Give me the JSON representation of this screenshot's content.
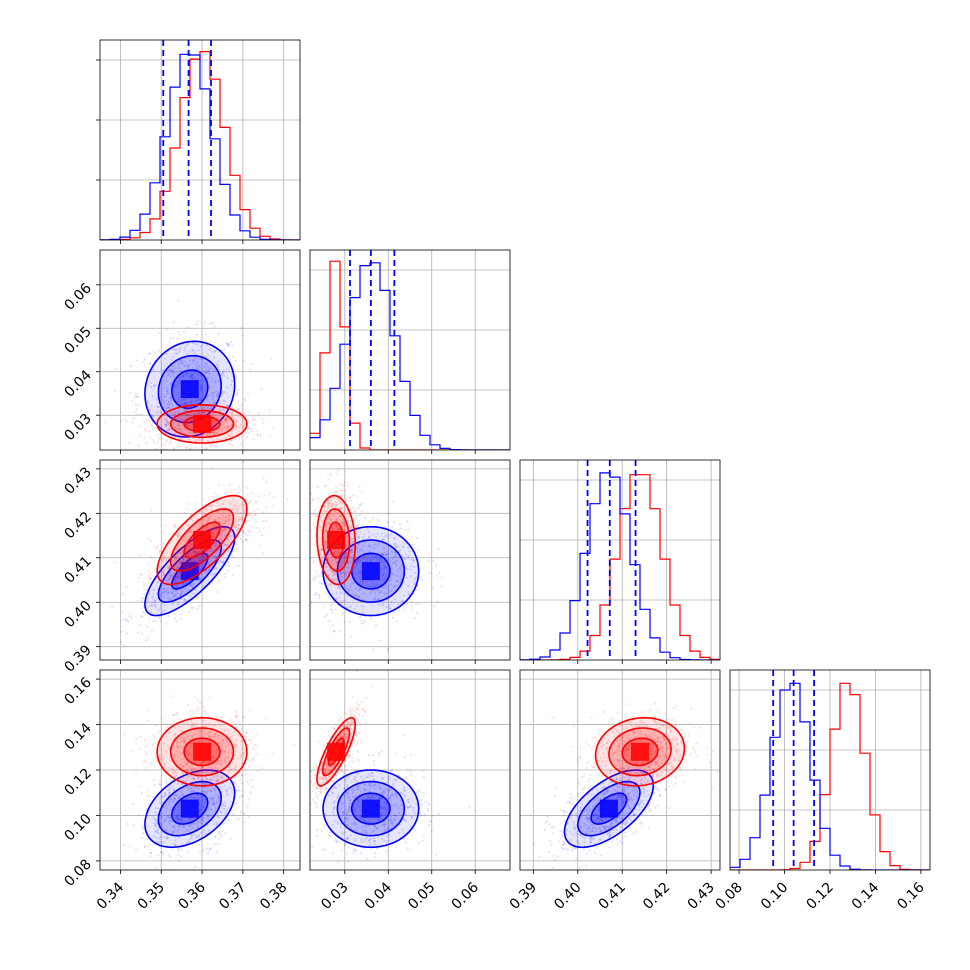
{
  "colors": {
    "red": "#ff0000",
    "blue": "#0000ff",
    "grid": "#b0b0b0",
    "axes": "#000000"
  },
  "chart_data": {
    "type": "corner",
    "title": "",
    "grid": true,
    "parameters": [
      {
        "range": [
          0.335,
          0.384
        ],
        "ticks": [
          "0.34",
          "0.35",
          "0.36",
          "0.37",
          "0.38"
        ],
        "tick_values": [
          0.34,
          0.35,
          0.36,
          0.37,
          0.38
        ],
        "label": ""
      },
      {
        "range": [
          0.022,
          0.068
        ],
        "ticks": [
          "0.03",
          "0.04",
          "0.05",
          "0.06"
        ],
        "tick_values": [
          0.03,
          0.04,
          0.05,
          0.06
        ],
        "label": ""
      },
      {
        "range": [
          0.387,
          0.432
        ],
        "ticks": [
          "0.39",
          "0.40",
          "0.41",
          "0.42",
          "0.43"
        ],
        "tick_values": [
          0.39,
          0.4,
          0.41,
          0.42,
          0.43
        ],
        "label": ""
      },
      {
        "range": [
          0.076,
          0.164
        ],
        "ticks": [
          "0.08",
          "0.10",
          "0.12",
          "0.14",
          "0.16"
        ],
        "tick_values": [
          0.08,
          0.1,
          0.12,
          0.14,
          0.16
        ],
        "label": ""
      }
    ],
    "series": [
      {
        "color": "red",
        "means": [
          0.36,
          0.028,
          0.414,
          0.128
        ],
        "sigmas": [
          0.0055,
          0.0022,
          0.005,
          0.0075
        ],
        "correlations": {
          "0-1": 0.0,
          "0-2": 0.7,
          "0-3": 0.0,
          "1-2": -0.1,
          "1-3": 0.8,
          "2-3": 0.1
        }
      },
      {
        "color": "blue",
        "means": [
          0.357,
          0.036,
          0.407,
          0.103
        ],
        "sigmas": [
          0.0055,
          0.0055,
          0.005,
          0.0085
        ],
        "correlations": {
          "0-1": 0.1,
          "0-2": 0.75,
          "0-3": 0.4,
          "1-2": 0.0,
          "1-3": 0.0,
          "2-3": 0.6
        }
      }
    ],
    "quantile_lines": {
      "color": "blue",
      "style": "dashed",
      "values": [
        [
          0.3505,
          0.3567,
          0.3622
        ],
        [
          0.0312,
          0.036,
          0.0414
        ],
        [
          0.4022,
          0.4072,
          0.413
        ],
        [
          0.095,
          0.104,
          0.113
        ]
      ]
    }
  }
}
